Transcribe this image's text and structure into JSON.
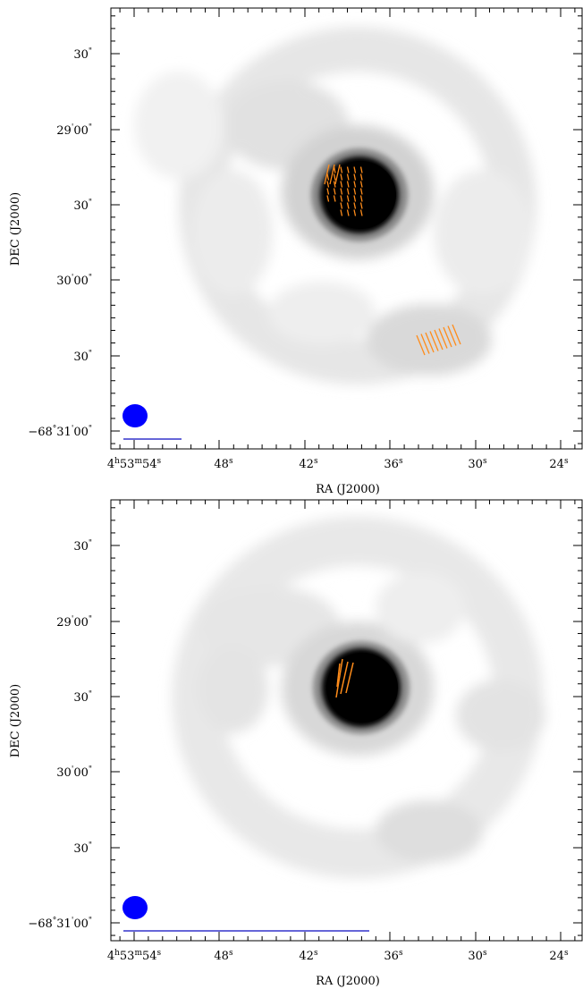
{
  "chart_data": [
    {
      "type": "heatmap",
      "description_kind": "polarization-map",
      "xlabel": "RA (J2000)",
      "ylabel": "DEC (J2000)",
      "x_ticks": [
        {
          "label": "4h53m54s",
          "parts": [
            "4",
            "h",
            "53",
            "m",
            "54",
            "s"
          ]
        },
        {
          "label": "48s",
          "parts": [
            "48",
            "s"
          ]
        },
        {
          "label": "42s",
          "parts": [
            "42",
            "s"
          ]
        },
        {
          "label": "36s",
          "parts": [
            "36",
            "s"
          ]
        },
        {
          "label": "30s",
          "parts": [
            "30",
            "s"
          ]
        },
        {
          "label": "24s",
          "parts": [
            "24",
            "s"
          ]
        }
      ],
      "y_ticks": [
        {
          "label": "30\"",
          "parts": [
            "30",
            "\""
          ]
        },
        {
          "label": "29'00\"",
          "parts": [
            "29",
            "'",
            "00",
            "\""
          ]
        },
        {
          "label": "30\"",
          "parts": [
            "30",
            "\""
          ]
        },
        {
          "label": "30'00\"",
          "parts": [
            "30",
            "'",
            "00",
            "\""
          ]
        },
        {
          "label": "30\"",
          "parts": [
            "30",
            "\""
          ]
        },
        {
          "label": "-68°31'00\"",
          "parts": [
            "−68",
            "°",
            "31",
            "'",
            "00",
            "\""
          ]
        }
      ],
      "colormap": "greyscale",
      "vector_color": "#ff8c1a",
      "beam_color": "#0000ff",
      "scale_bar_color": "#3333cc"
    },
    {
      "type": "heatmap",
      "description_kind": "polarization-map",
      "xlabel": "RA (J2000)",
      "ylabel": "DEC (J2000)",
      "x_ticks": [
        {
          "label": "4h53m54s",
          "parts": [
            "4",
            "h",
            "53",
            "m",
            "54",
            "s"
          ]
        },
        {
          "label": "48s",
          "parts": [
            "48",
            "s"
          ]
        },
        {
          "label": "42s",
          "parts": [
            "42",
            "s"
          ]
        },
        {
          "label": "36s",
          "parts": [
            "36",
            "s"
          ]
        },
        {
          "label": "30s",
          "parts": [
            "30",
            "s"
          ]
        },
        {
          "label": "24s",
          "parts": [
            "24",
            "s"
          ]
        }
      ],
      "y_ticks": [
        {
          "label": "30\"",
          "parts": [
            "30",
            "\""
          ]
        },
        {
          "label": "29'00\"",
          "parts": [
            "29",
            "'",
            "00",
            "\""
          ]
        },
        {
          "label": "30\"",
          "parts": [
            "30",
            "\""
          ]
        },
        {
          "label": "30'00\"",
          "parts": [
            "30",
            "'",
            "00",
            "\""
          ]
        },
        {
          "label": "30\"",
          "parts": [
            "30",
            "\""
          ]
        },
        {
          "label": "-68°31'00\"",
          "parts": [
            "−68",
            "°",
            "31",
            "'",
            "00",
            "\""
          ]
        }
      ],
      "colormap": "greyscale",
      "vector_color": "#ff8c1a",
      "beam_color": "#0000ff",
      "scale_bar_color": "#3333cc"
    }
  ]
}
